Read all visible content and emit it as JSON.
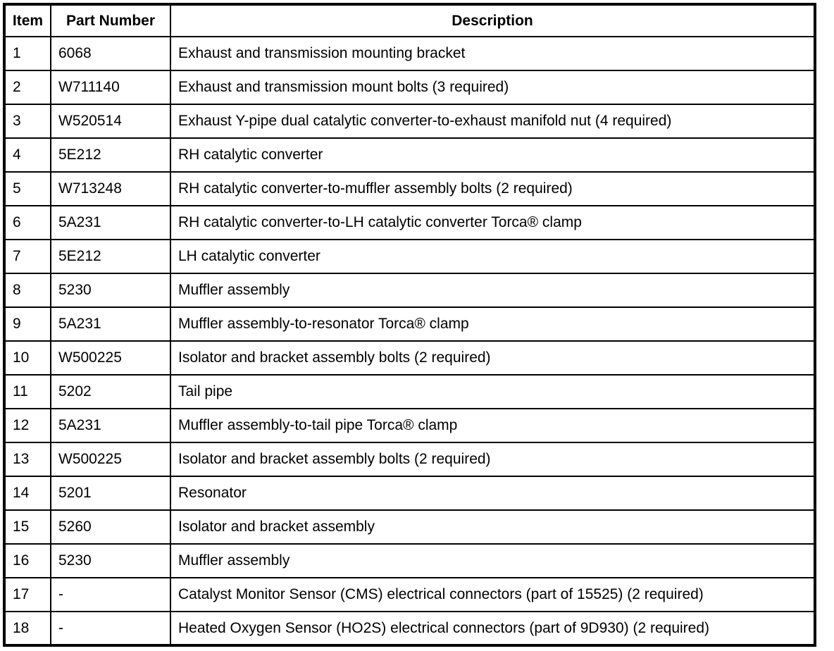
{
  "table": {
    "columns": [
      "Item",
      "Part Number",
      "Description"
    ],
    "rows": [
      {
        "item": "1",
        "part_number": "6068",
        "description": "Exhaust and transmission mounting bracket"
      },
      {
        "item": "2",
        "part_number": "W711140",
        "description": "Exhaust and transmission mount bolts (3 required)"
      },
      {
        "item": "3",
        "part_number": "W520514",
        "description": "Exhaust Y-pipe dual catalytic converter-to-exhaust manifold nut (4 required)"
      },
      {
        "item": "4",
        "part_number": "5E212",
        "description": "RH catalytic converter"
      },
      {
        "item": "5",
        "part_number": "W713248",
        "description": "RH catalytic converter-to-muffler assembly bolts (2 required)"
      },
      {
        "item": "6",
        "part_number": "5A231",
        "description": "RH catalytic converter-to-LH catalytic converter Torca® clamp"
      },
      {
        "item": "7",
        "part_number": "5E212",
        "description": "LH catalytic converter"
      },
      {
        "item": "8",
        "part_number": "5230",
        "description": "Muffler assembly"
      },
      {
        "item": "9",
        "part_number": "5A231",
        "description": "Muffler assembly-to-resonator Torca® clamp"
      },
      {
        "item": "10",
        "part_number": "W500225",
        "description": "Isolator and bracket assembly bolts (2 required)"
      },
      {
        "item": "11",
        "part_number": "5202",
        "description": "Tail pipe"
      },
      {
        "item": "12",
        "part_number": "5A231",
        "description": "Muffler assembly-to-tail pipe Torca® clamp"
      },
      {
        "item": "13",
        "part_number": "W500225",
        "description": "Isolator and bracket assembly bolts (2 required)"
      },
      {
        "item": "14",
        "part_number": "5201",
        "description": "Resonator"
      },
      {
        "item": "15",
        "part_number": "5260",
        "description": "Isolator and bracket assembly"
      },
      {
        "item": "16",
        "part_number": "5230",
        "description": "Muffler assembly"
      },
      {
        "item": "17",
        "part_number": "-",
        "description": "Catalyst Monitor Sensor (CMS) electrical connectors (part of 15525) (2 required)"
      },
      {
        "item": "18",
        "part_number": "-",
        "description": "Heated Oxygen Sensor (HO2S) electrical connectors (part of 9D930) (2 required)"
      }
    ],
    "text_color": "#000000",
    "border_color": "#000000",
    "background_color": "#ffffff"
  }
}
